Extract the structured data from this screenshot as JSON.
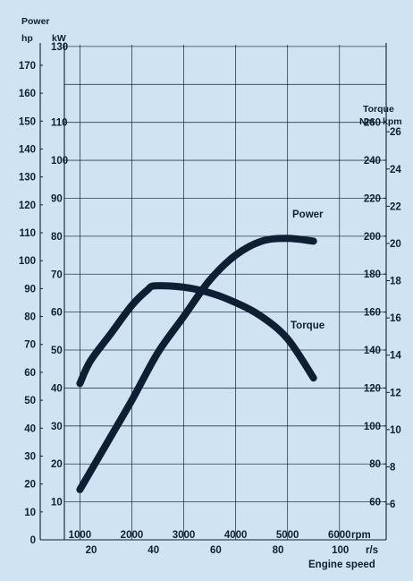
{
  "chart_data": {
    "type": "line",
    "title": "",
    "x_axis": {
      "label": "Engine speed",
      "rpm": {
        "unit": "rpm",
        "ticks": [
          1000,
          2000,
          3000,
          4000,
          5000,
          6000
        ],
        "range": [
          700,
          6900
        ]
      },
      "rps": {
        "unit": "r/s",
        "ticks": [
          20,
          40,
          60,
          80,
          100
        ]
      }
    },
    "left_axes": {
      "hp": {
        "label": "hp",
        "ticks": [
          0,
          10,
          20,
          30,
          40,
          50,
          60,
          70,
          80,
          90,
          100,
          110,
          120,
          130,
          140,
          150,
          160,
          170
        ],
        "range": [
          0,
          178
        ]
      },
      "kw": {
        "header": "Power",
        "label": "kW",
        "ticks": [
          10,
          20,
          30,
          40,
          50,
          60,
          70,
          80,
          90,
          100,
          110,
          130
        ]
      }
    },
    "right_axes": {
      "nm": {
        "header": "Torque",
        "label": "Nm",
        "ticks": [
          60,
          80,
          100,
          120,
          140,
          160,
          180,
          200,
          220,
          240,
          260
        ]
      },
      "kpm": {
        "label": "kpm",
        "ticks": [
          6,
          8,
          10,
          12,
          14,
          16,
          18,
          20,
          22,
          24,
          26
        ]
      }
    },
    "series": [
      {
        "name": "Power",
        "unit": "hp",
        "color": "#0f1f33",
        "x": [
          1000,
          1500,
          2000,
          2500,
          3000,
          3500,
          4000,
          4500,
          5000,
          5500
        ],
        "y": [
          18,
          34,
          50,
          67,
          80,
          93,
          102,
          107,
          108,
          107
        ]
      },
      {
        "name": "Torque",
        "unit": "hp",
        "color": "#0f1f33",
        "x": [
          1000,
          1200,
          1600,
          2000,
          2300,
          2450,
          3000,
          3500,
          4000,
          4500,
          5000,
          5500
        ],
        "y": [
          56,
          64,
          74,
          84,
          89.5,
          91,
          90.5,
          88.5,
          85,
          80,
          72,
          58
        ]
      }
    ],
    "grid": true,
    "colors": {
      "background": "#cfe3f3",
      "ink": "#0f1f33"
    }
  }
}
